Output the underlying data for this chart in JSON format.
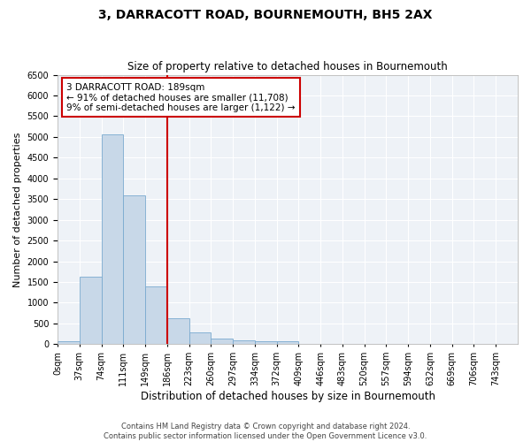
{
  "title": "3, DARRACOTT ROAD, BOURNEMOUTH, BH5 2AX",
  "subtitle": "Size of property relative to detached houses in Bournemouth",
  "xlabel": "Distribution of detached houses by size in Bournemouth",
  "ylabel": "Number of detached properties",
  "footer_line1": "Contains HM Land Registry data © Crown copyright and database right 2024.",
  "footer_line2": "Contains public sector information licensed under the Open Government Licence v3.0.",
  "bin_labels": [
    "0sqm",
    "37sqm",
    "74sqm",
    "111sqm",
    "149sqm",
    "186sqm",
    "223sqm",
    "260sqm",
    "297sqm",
    "334sqm",
    "372sqm",
    "409sqm",
    "446sqm",
    "483sqm",
    "520sqm",
    "557sqm",
    "594sqm",
    "632sqm",
    "669sqm",
    "706sqm",
    "743sqm"
  ],
  "bar_heights": [
    75,
    1630,
    5060,
    3580,
    1400,
    620,
    290,
    145,
    100,
    80,
    60,
    0,
    0,
    0,
    0,
    0,
    0,
    0,
    0,
    0,
    0
  ],
  "bar_color": "#c8d8e8",
  "bar_edgecolor": "#7aaacf",
  "vline_bin_index": 5,
  "annotation_title": "3 DARRACOTT ROAD: 189sqm",
  "annotation_line1": "← 91% of detached houses are smaller (11,708)",
  "annotation_line2": "9% of semi-detached houses are larger (1,122) →",
  "ylim": [
    0,
    6500
  ],
  "annotation_box_facecolor": "#ffffff",
  "annotation_box_edgecolor": "#cc0000",
  "vline_color": "#cc0000",
  "background_color": "#eef2f7",
  "grid_color": "#ffffff",
  "title_fontsize": 10,
  "subtitle_fontsize": 8.5,
  "ylabel_fontsize": 8,
  "xlabel_fontsize": 8.5,
  "tick_fontsize": 7,
  "annotation_fontsize": 7.5,
  "footer_fontsize": 6
}
